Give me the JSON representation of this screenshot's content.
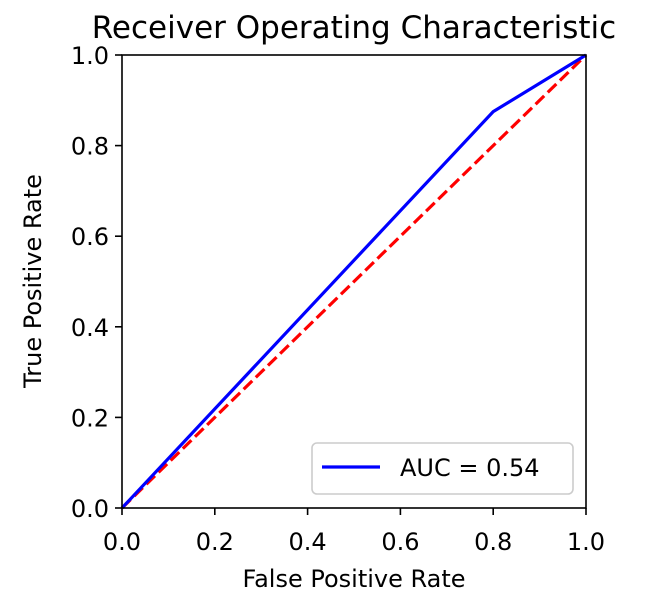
{
  "chart_data": {
    "type": "line",
    "title": "Receiver Operating Characteristic",
    "xlabel": "False Positive Rate",
    "ylabel": "True Positive Rate",
    "xlim": [
      0.0,
      1.0
    ],
    "ylim": [
      0.0,
      1.0
    ],
    "x_ticks": [
      "0.0",
      "0.2",
      "0.4",
      "0.6",
      "0.8",
      "1.0"
    ],
    "y_ticks": [
      "0.0",
      "0.2",
      "0.4",
      "0.6",
      "0.8",
      "1.0"
    ],
    "grid": false,
    "legend_position": "lower-right",
    "series": [
      {
        "name": "AUC = 0.54",
        "color": "#0000ff",
        "style": "solid",
        "x": [
          0.0,
          0.8,
          1.0
        ],
        "y": [
          0.0,
          0.875,
          1.0
        ]
      },
      {
        "color": "#ff0000",
        "style": "dashed",
        "x": [
          0.0,
          1.0
        ],
        "y": [
          0.0,
          1.0
        ]
      }
    ]
  }
}
